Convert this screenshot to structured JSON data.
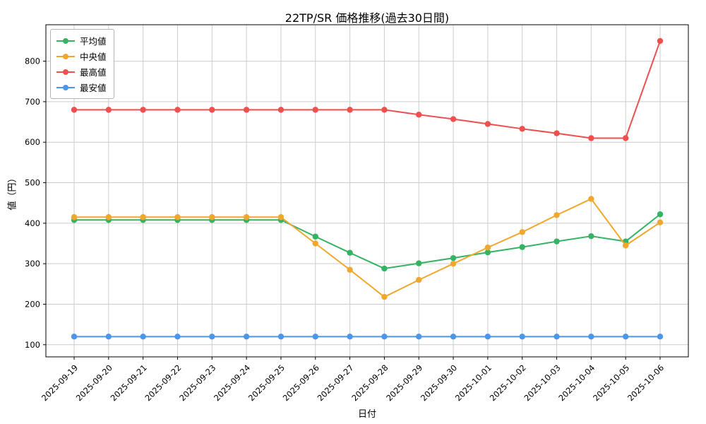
{
  "chart_data": {
    "type": "line",
    "title": "22TP/SR 価格推移(過去30日間)",
    "xlabel": "日付",
    "ylabel": "値（円）",
    "categories": [
      "2025-09-19",
      "2025-09-20",
      "2025-09-21",
      "2025-09-22",
      "2025-09-23",
      "2025-09-24",
      "2025-09-25",
      "2025-09-26",
      "2025-09-27",
      "2025-09-28",
      "2025-09-29",
      "2025-09-30",
      "2025-10-01",
      "2025-10-02",
      "2025-10-03",
      "2025-10-04",
      "2025-10-05",
      "2025-10-06"
    ],
    "ylim": [
      70,
      890
    ],
    "yticks": [
      100,
      200,
      300,
      400,
      500,
      600,
      700,
      800
    ],
    "grid": true,
    "grid_color": "#cccccc",
    "legend_position": "upper-left",
    "series": [
      {
        "key": "mean",
        "label": "平均値",
        "color": "#34b364",
        "values": [
          408,
          408,
          408,
          408,
          408,
          408,
          408,
          367,
          327,
          288,
          301,
          314,
          328,
          341,
          355,
          368,
          355,
          422
        ]
      },
      {
        "key": "median",
        "label": "中央値",
        "color": "#f0a72e",
        "values": [
          415,
          415,
          415,
          415,
          415,
          415,
          415,
          350,
          285,
          218,
          260,
          300,
          340,
          378,
          420,
          460,
          345,
          402
        ]
      },
      {
        "key": "max",
        "label": "最高値",
        "color": "#ee4f4f",
        "values": [
          680,
          680,
          680,
          680,
          680,
          680,
          680,
          680,
          680,
          680,
          668,
          657,
          645,
          633,
          622,
          610,
          610,
          850
        ]
      },
      {
        "key": "min",
        "label": "最安値",
        "color": "#4b96e8",
        "values": [
          120,
          120,
          120,
          120,
          120,
          120,
          120,
          120,
          120,
          120,
          120,
          120,
          120,
          120,
          120,
          120,
          120,
          120
        ]
      }
    ]
  }
}
